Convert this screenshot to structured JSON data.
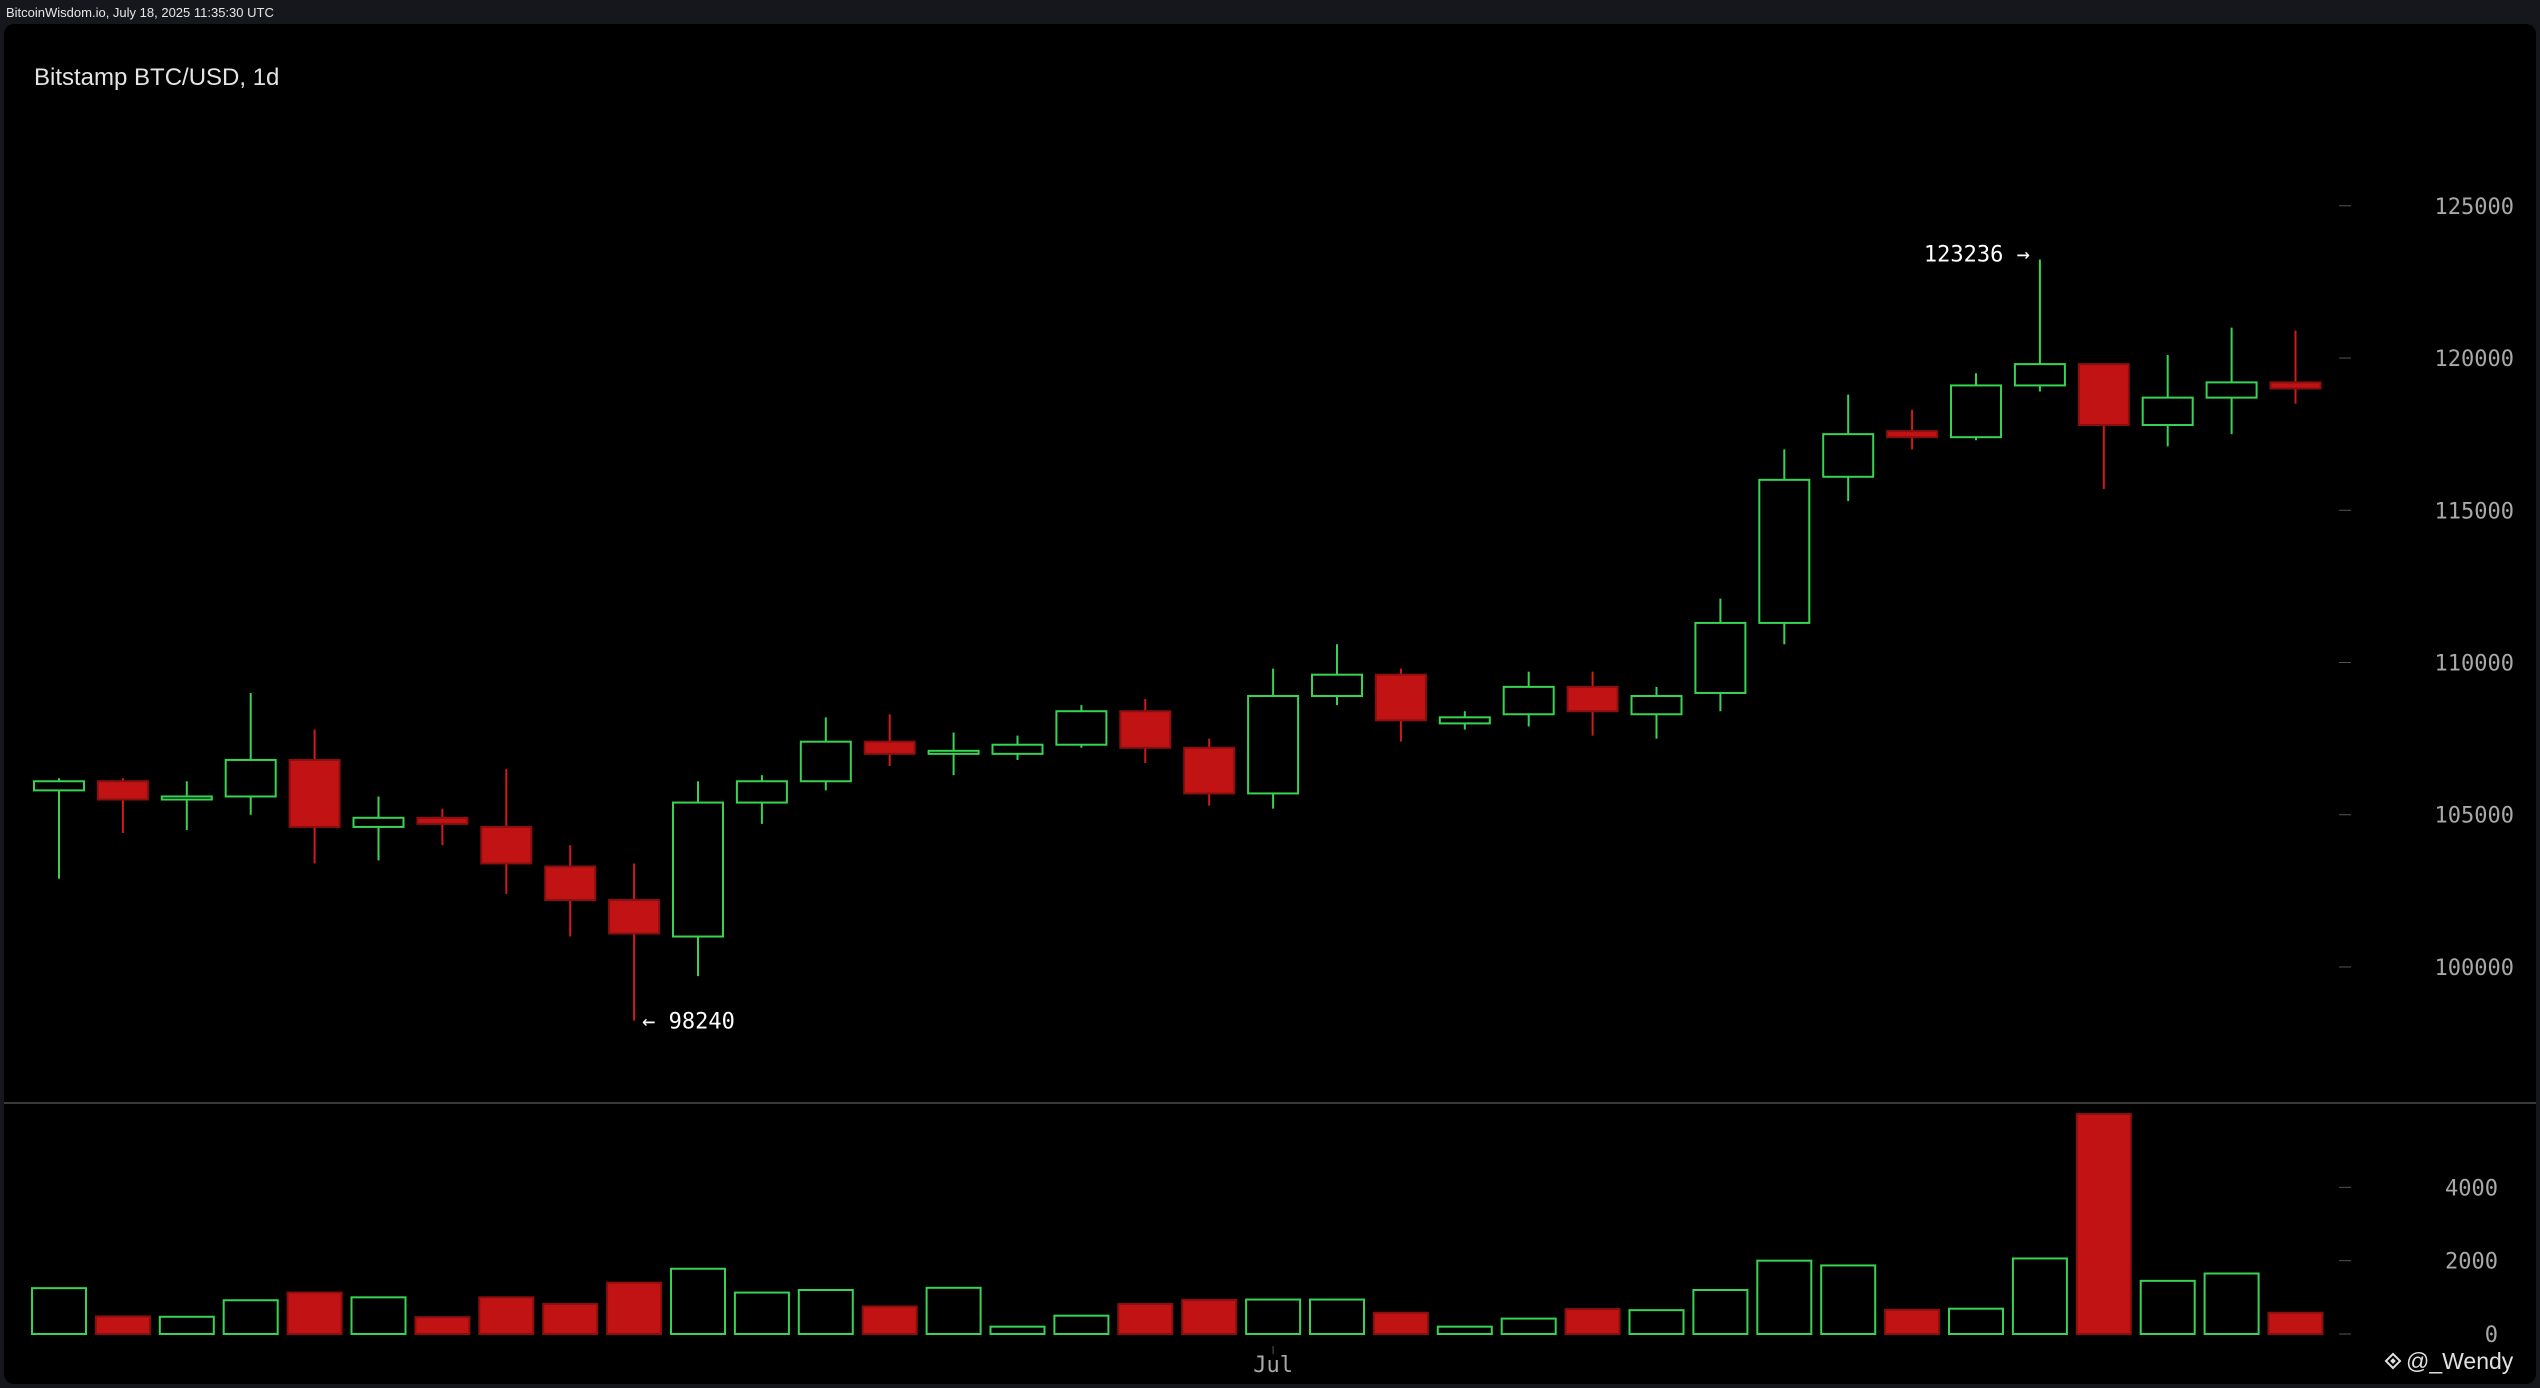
{
  "header": {
    "source_stamp": "BitcoinWisdom.io, July 18, 2025 11:35:30 UTC"
  },
  "chart": {
    "title": "Bitstamp BTC/USD, 1d"
  },
  "watermark": {
    "text": "@_Wendy",
    "icon": "binance-square-icon"
  },
  "colors": {
    "up": "#39d353",
    "down": "#c11313",
    "down_stroke": "#8a0f0f",
    "grid": "#2e2e2e",
    "axis_text": "#a8a8a8",
    "background": "#000000"
  },
  "chart_data": [
    {
      "type": "candlestick",
      "ylim": [
        95500,
        129000
      ],
      "yticks": [
        "125000",
        "120000",
        "115000",
        "110000",
        "105000",
        "100000"
      ],
      "xlabel_tick": {
        "label": "Jul",
        "index": 19
      },
      "annotations": [
        {
          "text": "123236 →",
          "index": 31,
          "value": 123236
        },
        {
          "text": "← 98240",
          "index": 9,
          "value": 98240
        }
      ],
      "candles": [
        {
          "o": 105800,
          "h": 106200,
          "l": 102900,
          "c": 106100
        },
        {
          "o": 106100,
          "h": 106200,
          "l": 104400,
          "c": 105500
        },
        {
          "o": 105500,
          "h": 106100,
          "l": 104500,
          "c": 105600
        },
        {
          "o": 105600,
          "h": 109000,
          "l": 105000,
          "c": 106800
        },
        {
          "o": 106800,
          "h": 107800,
          "l": 103400,
          "c": 104600
        },
        {
          "o": 104600,
          "h": 105600,
          "l": 103500,
          "c": 104900
        },
        {
          "o": 104900,
          "h": 105200,
          "l": 104000,
          "c": 104700
        },
        {
          "o": 104600,
          "h": 106500,
          "l": 102400,
          "c": 103400
        },
        {
          "o": 103300,
          "h": 104000,
          "l": 101000,
          "c": 102200
        },
        {
          "o": 102200,
          "h": 103400,
          "l": 98240,
          "c": 101100
        },
        {
          "o": 101000,
          "h": 106100,
          "l": 99700,
          "c": 105400
        },
        {
          "o": 105400,
          "h": 106300,
          "l": 104700,
          "c": 106100
        },
        {
          "o": 106100,
          "h": 108200,
          "l": 105800,
          "c": 107400
        },
        {
          "o": 107400,
          "h": 108300,
          "l": 106600,
          "c": 107000
        },
        {
          "o": 107000,
          "h": 107700,
          "l": 106300,
          "c": 107100
        },
        {
          "o": 107000,
          "h": 107600,
          "l": 106800,
          "c": 107300
        },
        {
          "o": 107300,
          "h": 108600,
          "l": 107200,
          "c": 108400
        },
        {
          "o": 108400,
          "h": 108800,
          "l": 106700,
          "c": 107200
        },
        {
          "o": 107200,
          "h": 107500,
          "l": 105300,
          "c": 105700
        },
        {
          "o": 105700,
          "h": 109800,
          "l": 105200,
          "c": 108900
        },
        {
          "o": 108900,
          "h": 110600,
          "l": 108600,
          "c": 109600
        },
        {
          "o": 109600,
          "h": 109800,
          "l": 107400,
          "c": 108100
        },
        {
          "o": 108000,
          "h": 108400,
          "l": 107800,
          "c": 108200
        },
        {
          "o": 108300,
          "h": 109700,
          "l": 107900,
          "c": 109200
        },
        {
          "o": 109200,
          "h": 109700,
          "l": 107600,
          "c": 108400
        },
        {
          "o": 108300,
          "h": 109200,
          "l": 107500,
          "c": 108900
        },
        {
          "o": 109000,
          "h": 112100,
          "l": 108400,
          "c": 111300
        },
        {
          "o": 111300,
          "h": 117000,
          "l": 110600,
          "c": 116000
        },
        {
          "o": 116100,
          "h": 118800,
          "l": 115300,
          "c": 117500
        },
        {
          "o": 117600,
          "h": 118300,
          "l": 117000,
          "c": 117400
        },
        {
          "o": 117400,
          "h": 119500,
          "l": 117300,
          "c": 119100
        },
        {
          "o": 119100,
          "h": 123236,
          "l": 118900,
          "c": 119800
        },
        {
          "o": 119800,
          "h": 119800,
          "l": 115700,
          "c": 117800
        },
        {
          "o": 117800,
          "h": 120100,
          "l": 117100,
          "c": 118700
        },
        {
          "o": 118700,
          "h": 121000,
          "l": 117500,
          "c": 119200
        },
        {
          "o": 119200,
          "h": 120900,
          "l": 118500,
          "c": 119000
        }
      ]
    },
    {
      "type": "bar",
      "ylim": [
        0,
        6000
      ],
      "yticks": [
        "4000",
        "2000",
        "0"
      ],
      "volumes": [
        1250,
        480,
        470,
        920,
        1130,
        1000,
        460,
        1000,
        820,
        1400,
        1780,
        1130,
        1200,
        750,
        1260,
        200,
        500,
        820,
        930,
        940,
        940,
        580,
        200,
        420,
        680,
        650,
        1200,
        2000,
        1870,
        660,
        690,
        2060,
        6000,
        1450,
        1650,
        580
      ]
    }
  ]
}
